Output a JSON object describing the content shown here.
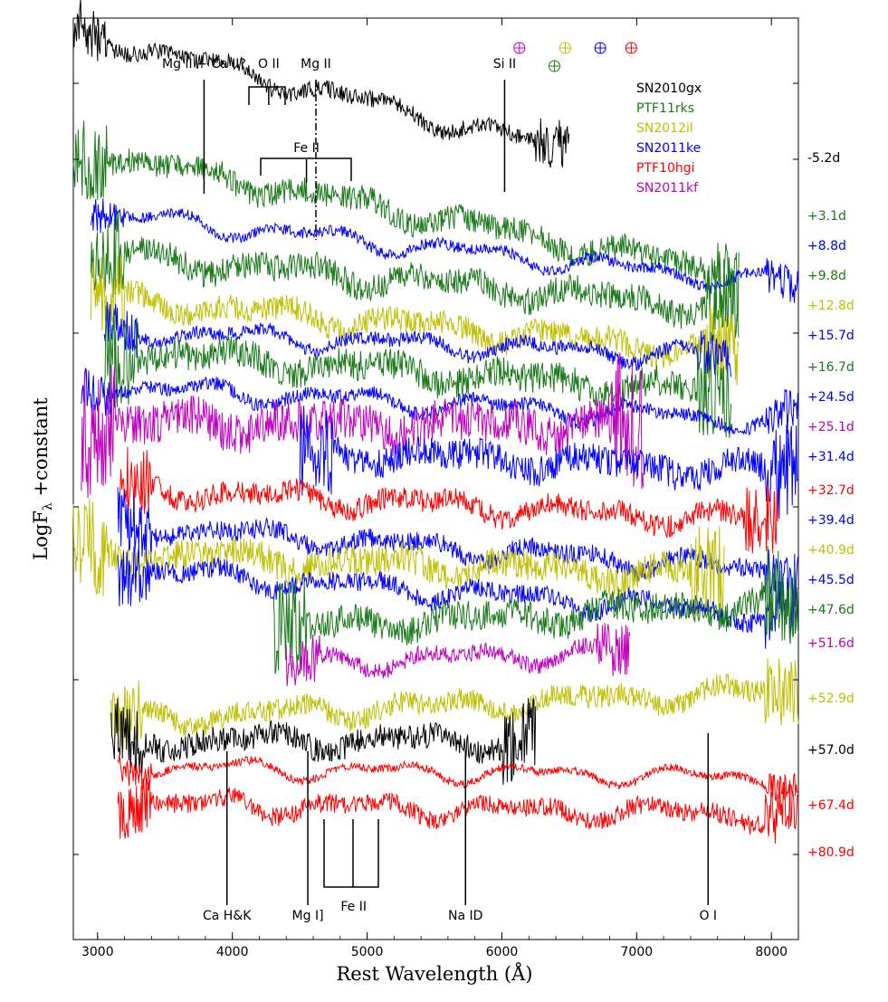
{
  "chart_data": {
    "type": "line",
    "xlabel": "Rest Wavelength (Å)",
    "ylabel": "LogF",
    "ylabel_sub": "λ",
    "ylabel_suffix": " +constant",
    "xlim": [
      2820,
      8200
    ],
    "x_ticks": [
      "3000",
      "4000",
      "5000",
      "6000",
      "7000",
      "8000"
    ],
    "x_tick_values": [
      3000,
      4000,
      5000,
      6000,
      7000,
      8000
    ],
    "y_ticks_shown": false,
    "legend_position": "top-right",
    "legend": [
      {
        "name": "SN2010gx",
        "color": "#000000"
      },
      {
        "name": "PTF11rks",
        "color": "#1a7a1a"
      },
      {
        "name": "SN2012il",
        "color": "#bfbf00"
      },
      {
        "name": "SN2011ke",
        "color": "#0000ff"
      },
      {
        "name": "PTF10hgi",
        "color": "#ff0000"
      },
      {
        "name": "SN2011kf",
        "color": "#bf00bf"
      }
    ],
    "telluric_markers": [
      {
        "x": 6130,
        "color": "#bf00bf",
        "row": 0
      },
      {
        "x": 6470,
        "color": "#bfbf00",
        "row": 0
      },
      {
        "x": 6730,
        "color": "#0000ff",
        "row": 0
      },
      {
        "x": 6960,
        "color": "#ff0000",
        "row": 0
      },
      {
        "x": 6390,
        "color": "#1a7a1a",
        "row": 1
      }
    ],
    "line_annotations_top": [
      {
        "label": "Mg II + Ca II?",
        "x": 3790
      },
      {
        "label": "O II",
        "x": 4270
      },
      {
        "label": "Mg II",
        "x": 4620
      },
      {
        "label": "Si II",
        "x": 6020
      },
      {
        "label": "Fe II",
        "x": 4550
      }
    ],
    "line_annotations_bottom": [
      {
        "label": "Ca H&K",
        "x": 3960
      },
      {
        "label": "Mg I]",
        "x": 4560
      },
      {
        "label": "Fe II",
        "x": 4900
      },
      {
        "label": "Na ID",
        "x": 5730
      },
      {
        "label": "O I",
        "x": 7530
      }
    ],
    "series": [
      {
        "name": "SN2010gx",
        "epoch": "-5.2d",
        "color": "#000000",
        "x_range": [
          2820,
          6500
        ],
        "offset": 0.0,
        "slope": 0.28,
        "noise": 0.012
      },
      {
        "name": "PTF11rks",
        "epoch": "+3.1d",
        "color": "#1a7a1a",
        "x_range": [
          2820,
          7760
        ],
        "offset": 0.92,
        "slope": 0.22,
        "noise": 0.018
      },
      {
        "name": "SN2011ke",
        "epoch": "+8.8d",
        "color": "#0000ff",
        "x_range": [
          2950,
          8200
        ],
        "offset": 1.28,
        "slope": 0.12,
        "noise": 0.008
      },
      {
        "name": "PTF11rks",
        "epoch": "+9.8d",
        "color": "#1a7a1a",
        "x_range": [
          2950,
          7760
        ],
        "offset": 1.6,
        "slope": 0.1,
        "noise": 0.02
      },
      {
        "name": "SN2012il",
        "epoch": "+12.8d",
        "color": "#bfbf00",
        "x_range": [
          2950,
          7760
        ],
        "offset": 1.98,
        "slope": 0.1,
        "noise": 0.018
      },
      {
        "name": "SN2011ke",
        "epoch": "+15.7d",
        "color": "#0000ff",
        "x_range": [
          3050,
          7700
        ],
        "offset": 2.18,
        "slope": 0.05,
        "noise": 0.01
      },
      {
        "name": "PTF11rks",
        "epoch": "+16.7d",
        "color": "#1a7a1a",
        "x_range": [
          3050,
          7700
        ],
        "offset": 2.4,
        "slope": 0.08,
        "noise": 0.022
      },
      {
        "name": "SN2011ke",
        "epoch": "+24.5d",
        "color": "#0000ff",
        "x_range": [
          2880,
          8200
        ],
        "offset": 2.68,
        "slope": 0.06,
        "noise": 0.01
      },
      {
        "name": "SN2011kf",
        "epoch": "+25.1d",
        "color": "#bf00bf",
        "x_range": [
          2880,
          7050
        ],
        "offset": 2.92,
        "slope": 0.0,
        "noise": 0.03
      },
      {
        "name": "SN2011ke",
        "epoch": "+31.4d",
        "color": "#0000ff",
        "x_range": [
          4500,
          8200
        ],
        "offset": 3.15,
        "slope": 0.05,
        "noise": 0.022
      },
      {
        "name": "PTF10hgi",
        "epoch": "+32.7d",
        "color": "#ff0000",
        "x_range": [
          3150,
          8050
        ],
        "offset": 3.55,
        "slope": 0.06,
        "noise": 0.016
      },
      {
        "name": "SN2011ke",
        "epoch": "+39.4d",
        "color": "#0000ff",
        "x_range": [
          3150,
          8200
        ],
        "offset": 3.9,
        "slope": 0.08,
        "noise": 0.014
      },
      {
        "name": "SN2012il",
        "epoch": "+40.9d",
        "color": "#bfbf00",
        "x_range": [
          2820,
          7650
        ],
        "offset": 4.1,
        "slope": 0.04,
        "noise": 0.022
      },
      {
        "name": "SN2011ke",
        "epoch": "+45.5d",
        "color": "#0000ff",
        "x_range": [
          3150,
          8200
        ],
        "offset": 4.28,
        "slope": 0.08,
        "noise": 0.014
      },
      {
        "name": "PTF11rks",
        "epoch": "+47.6d",
        "color": "#1a7a1a",
        "x_range": [
          4300,
          8200
        ],
        "offset": 4.68,
        "slope": -0.06,
        "noise": 0.022
      },
      {
        "name": "SN2011kf",
        "epoch": "+51.6d",
        "color": "#bf00bf",
        "x_range": [
          4400,
          6950
        ],
        "offset": 4.98,
        "slope": -0.04,
        "noise": 0.012
      },
      {
        "name": "SN2012il",
        "epoch": "+52.9d",
        "color": "#bfbf00",
        "x_range": [
          3100,
          8200
        ],
        "offset": 5.4,
        "slope": -0.05,
        "noise": 0.016
      },
      {
        "name": "SN2010gx",
        "epoch": "+57.0d",
        "color": "#000000",
        "x_range": [
          3100,
          6250
        ],
        "offset": 5.65,
        "slope": 0.0,
        "noise": 0.018
      },
      {
        "name": "PTF10hgi",
        "epoch": "+67.4d",
        "color": "#ff0000",
        "x_range": [
          3150,
          8200
        ],
        "offset": 5.9,
        "slope": 0.02,
        "noise": 0.006
      },
      {
        "name": "PTF10hgi",
        "epoch": "+80.9d",
        "color": "#ff0000",
        "x_range": [
          3150,
          8200
        ],
        "offset": 6.22,
        "slope": 0.02,
        "noise": 0.014
      }
    ]
  }
}
